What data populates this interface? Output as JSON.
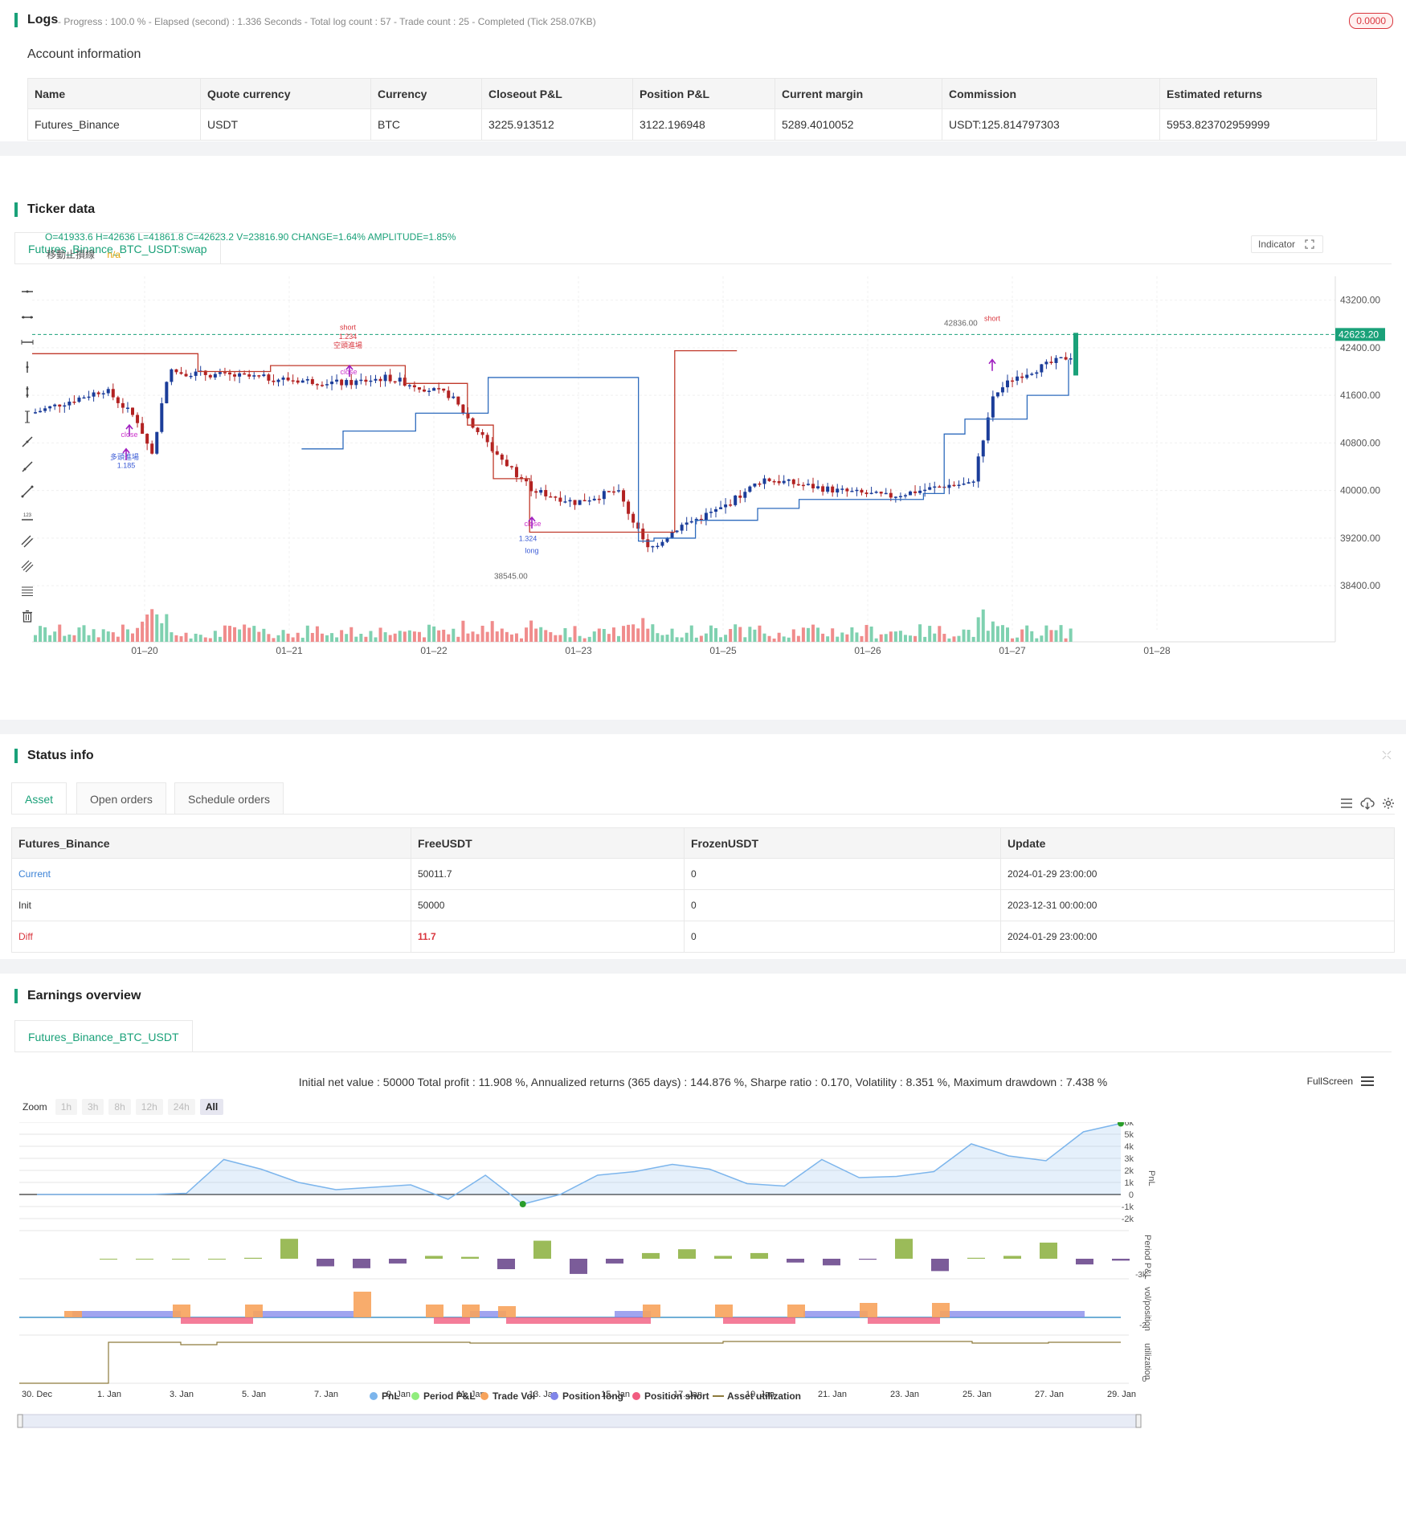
{
  "logs": {
    "title": "Logs",
    "status": "- Progress : 100.0 % - Elapsed (second) : 1.336  Seconds - Total log count : 57 - Trade count : 25 - Completed (Tick 258.07KB)",
    "badge": "0.0000"
  },
  "account": {
    "title": "Account information",
    "headers": [
      "Name",
      "Quote currency",
      "Currency",
      "Closeout P&L",
      "Position P&L",
      "Current margin",
      "Commission",
      "Estimated returns"
    ],
    "row": [
      "Futures_Binance",
      "USDT",
      "BTC",
      "3225.913512",
      "3122.196948",
      "5289.4010052",
      "USDT:125.814797303",
      "5953.823702959999"
    ]
  },
  "ticker": {
    "title": "Ticker data",
    "tab": "Futures_Binance_BTC_USDT:swap",
    "ohlc": "O=41933.6 H=42636 L=41861.8 C=42623.2 V=23816.90 CHANGE=1.64% AMPLITUDE=1.85%",
    "indicator_name": "移動止損線",
    "indicator_value": "n/a",
    "indicator_button": "Indicator",
    "price_labels": [
      "43200.00",
      "42400.00",
      "41600.00",
      "40800.00",
      "40000.00",
      "39200.00",
      "38400.00"
    ],
    "current_price": "42623.20",
    "date_labels": [
      "01–20",
      "01–21",
      "01–22",
      "01–23",
      "01–25",
      "01–26",
      "01–27",
      "01–28"
    ],
    "annotations": {
      "high": "42836.00",
      "low": "38545.00"
    },
    "signals": [
      {
        "text": "short",
        "sub": "1.234",
        "label": "空頭進場"
      },
      {
        "text": "close"
      },
      {
        "text": "close"
      },
      {
        "text": "多頭進場",
        "sub": "1.185"
      },
      {
        "text": "long"
      },
      {
        "text": "short"
      },
      {
        "text": "1.324"
      },
      {
        "text": "close"
      }
    ]
  },
  "chart_data": {
    "type": "candlestick",
    "xlabel": "",
    "ylabel": "",
    "ylim": [
      38200,
      43600
    ],
    "last": {
      "open": 41933.6,
      "high": 42636,
      "low": 41861.8,
      "close": 42623.2,
      "volume": 23816.9
    },
    "trailing_stop_up": [
      [
        0.26,
        40700
      ],
      [
        0.3,
        41000
      ],
      [
        0.37,
        41300
      ],
      [
        0.44,
        41900
      ],
      [
        0.57,
        41900
      ],
      [
        0.585,
        39150
      ],
      [
        0.6,
        39200
      ],
      [
        0.64,
        39500
      ],
      [
        0.7,
        39700
      ],
      [
        0.74,
        39850
      ],
      [
        0.86,
        39950
      ],
      [
        0.88,
        40950
      ],
      [
        0.9,
        41200
      ],
      [
        0.96,
        41600
      ],
      [
        1.0,
        42200
      ]
    ],
    "trailing_stop_down": [
      [
        0.0,
        42300
      ],
      [
        0.16,
        42000
      ],
      [
        0.23,
        42100
      ],
      [
        0.26,
        42100
      ],
      [
        0.36,
        41800
      ],
      [
        0.42,
        41100
      ],
      [
        0.445,
        40200
      ],
      [
        0.48,
        39300
      ],
      [
        0.5,
        39300
      ],
      [
        0.62,
        42350
      ],
      [
        0.68,
        42350
      ]
    ]
  },
  "status": {
    "title": "Status info",
    "tabs": [
      "Asset",
      "Open orders",
      "Schedule orders"
    ],
    "headers": [
      "Futures_Binance",
      "FreeUSDT",
      "FrozenUSDT",
      "Update"
    ],
    "rows": [
      [
        "Current",
        "50011.7",
        "0",
        "2024-01-29 23:00:00"
      ],
      [
        "Init",
        "50000",
        "0",
        "2023-12-31 00:00:00"
      ],
      [
        "Diff",
        "11.7",
        "0",
        "2024-01-29 23:00:00"
      ]
    ]
  },
  "earnings": {
    "title": "Earnings overview",
    "tab": "Futures_Binance_BTC_USDT",
    "summary": "Initial net value : 50000 Total profit : 11.908 %, Annualized returns (365 days) : 144.876 %, Sharpe ratio : 0.170, Volatility : 8.351 %, Maximum drawdown : 7.438 %",
    "fullscreen": "FullScreen",
    "zoom_label": "Zoom",
    "zoom_buttons": [
      "1h",
      "3h",
      "8h",
      "12h",
      "24h",
      "All"
    ],
    "pnl_ticks": [
      "6k",
      "5k",
      "4k",
      "3k",
      "2k",
      "1k",
      "0",
      "-1k",
      "-2k"
    ],
    "pnl_axis": "PnL",
    "period_axis": "Period P&L",
    "period_tick": "-3k",
    "vol_axis": "vol/position",
    "vol_tick": "-2",
    "util_axis": "utilization",
    "util_tick": "0",
    "x_labels": [
      "30. Dec",
      "1. Jan",
      "3. Jan",
      "5. Jan",
      "7. Jan",
      "9. Jan",
      "11. Jan",
      "13. Jan",
      "15. Jan",
      "17. Jan",
      "19. Jan",
      "21. Jan",
      "23. Jan",
      "25. Jan",
      "27. Jan",
      "29. Jan"
    ],
    "legend": [
      "PnL",
      "Period P&L",
      "Trade Vol",
      "Position long",
      "Position short",
      "Asset utilization"
    ],
    "colors": {
      "pnl": "#7cb5ec",
      "period": "#90ed7d",
      "vol": "#f7a35c",
      "long": "#8085e9",
      "short": "#f15c80",
      "util": "#8d7a3c"
    },
    "pnl_series": [
      0,
      0,
      0,
      0,
      100,
      2900,
      2100,
      1000,
      400,
      600,
      800,
      -400,
      1600,
      -800,
      0,
      1600,
      1900,
      2500,
      2100,
      900,
      700,
      2900,
      1400,
      1500,
      1900,
      4200,
      3200,
      2800,
      5200,
      5900
    ],
    "period_pnl": [
      0,
      0,
      0,
      0,
      100,
      2100,
      -800,
      -1000,
      -500,
      300,
      200,
      -1100,
      1900,
      -1600,
      -500,
      600,
      1000,
      300,
      600,
      -400,
      -700,
      -100,
      2100,
      -1300,
      100,
      300,
      1700,
      -600,
      -200,
      2100,
      400,
      400
    ]
  }
}
